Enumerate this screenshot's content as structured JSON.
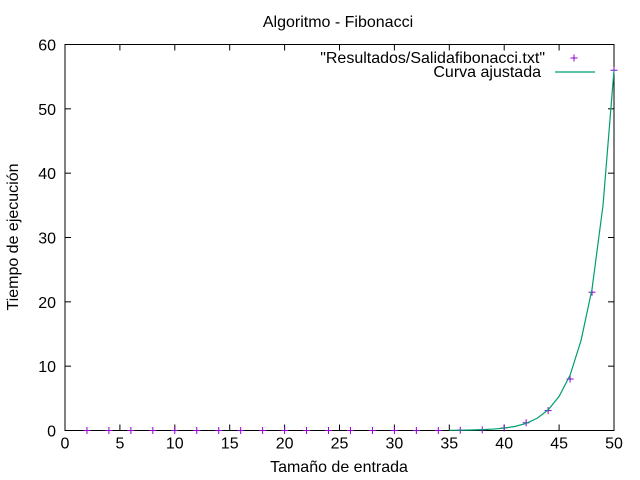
{
  "chart_data": {
    "type": "scatter",
    "title": "Algoritmo - Fibonacci",
    "xlabel": "Tamaño de entrada",
    "ylabel": "Tiempo de ejecución",
    "xlim": [
      0,
      50
    ],
    "ylim": [
      0,
      60
    ],
    "xticks": [
      0,
      5,
      10,
      15,
      20,
      25,
      30,
      35,
      40,
      45,
      50
    ],
    "yticks": [
      0,
      10,
      20,
      30,
      40,
      50,
      60
    ],
    "grid": false,
    "legend_position": "top-right",
    "series": [
      {
        "name": "\"Resultados/Salidafibonacci.txt\"",
        "kind": "points",
        "marker": "plus",
        "color": "#9400d3",
        "x": [
          2,
          4,
          6,
          8,
          10,
          12,
          14,
          16,
          18,
          20,
          22,
          24,
          26,
          28,
          30,
          32,
          34,
          36,
          38,
          40,
          42,
          44,
          46,
          48,
          50
        ],
        "y": [
          0,
          0,
          0,
          0,
          0,
          0,
          0,
          0,
          0,
          0,
          0,
          0,
          0,
          0,
          0,
          0,
          0.01,
          0.04,
          0.1,
          0.4,
          1.2,
          3.1,
          8.0,
          21.5,
          56.0
        ]
      },
      {
        "name": "Curva ajustada",
        "kind": "line",
        "color": "#009e73",
        "x": [
          35,
          36,
          37,
          38,
          39,
          40,
          41,
          42,
          43,
          44,
          45,
          46,
          47,
          48,
          49,
          50
        ],
        "y": [
          0.03,
          0.05,
          0.08,
          0.13,
          0.22,
          0.38,
          0.64,
          1.1,
          1.9,
          3.2,
          5.3,
          8.6,
          14,
          22,
          35,
          56
        ]
      }
    ]
  }
}
